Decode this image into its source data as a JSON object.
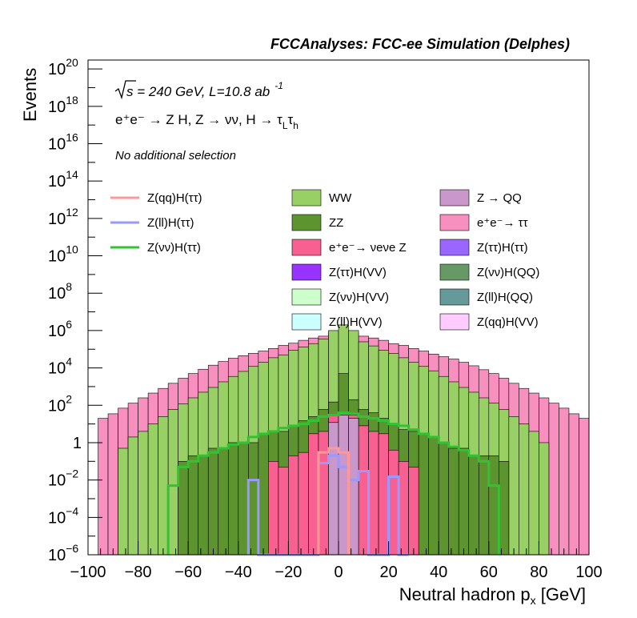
{
  "header": "FCCAnalyses: FCC-ee Simulation (Delphes)",
  "ylabel": "Events",
  "xlabel_main": "Neutral hadron p",
  "xlabel_sub": "x",
  "xlabel_unit": " [GeV]",
  "energy_sqrt": "s",
  "energy_text": " = 240 GeV, L=10.8 ab",
  "energy_sup": "-1",
  "process_text": "e⁺e⁻ → Z H, Z → νν, H → τ",
  "process_sub1": "L",
  "process_tau2": "τ",
  "process_sub2": "h",
  "selection": "No additional selection",
  "chart_data": {
    "type": "area",
    "x_range": [
      -100,
      100
    ],
    "y_range": [
      1e-06,
      3e+20
    ],
    "y_scale": "log",
    "x_ticks": [
      -100,
      -80,
      -60,
      -40,
      -20,
      0,
      20,
      40,
      60,
      80,
      100
    ],
    "y_ticks": [
      {
        "exp": -6,
        "label": "10",
        "sup": "-6"
      },
      {
        "exp": -4,
        "label": "10",
        "sup": "-4"
      },
      {
        "exp": -2,
        "label": "10",
        "sup": "-2"
      },
      {
        "exp": 0,
        "label": "1",
        "sup": ""
      },
      {
        "exp": 2,
        "label": "10",
        "sup": "2"
      },
      {
        "exp": 4,
        "label": "10",
        "sup": "4"
      },
      {
        "exp": 6,
        "label": "10",
        "sup": "6"
      },
      {
        "exp": 8,
        "label": "10",
        "sup": "8"
      },
      {
        "exp": 10,
        "label": "10",
        "sup": "10"
      },
      {
        "exp": 12,
        "label": "10",
        "sup": "12"
      },
      {
        "exp": 14,
        "label": "10",
        "sup": "14"
      },
      {
        "exp": 16,
        "label": "10",
        "sup": "16"
      },
      {
        "exp": 18,
        "label": "10",
        "sup": "18"
      },
      {
        "exp": 20,
        "label": "10",
        "sup": "20"
      }
    ],
    "bin_width": 4,
    "stacked_series": [
      {
        "name": "e⁺e⁻→ ττ",
        "color": "#f78fbf",
        "bins": [
          [
            -96,
            20
          ],
          [
            -92,
            35
          ],
          [
            -88,
            70
          ],
          [
            -84,
            130
          ],
          [
            -80,
            250
          ],
          [
            -76,
            450
          ],
          [
            -72,
            800
          ],
          [
            -68,
            1500
          ],
          [
            -64,
            2800
          ],
          [
            -60,
            5000
          ],
          [
            -56,
            8500
          ],
          [
            -52,
            14000
          ],
          [
            -48,
            22000
          ],
          [
            -44,
            33000
          ],
          [
            -40,
            45000
          ],
          [
            -36,
            60000
          ],
          [
            -32,
            80000
          ],
          [
            -28,
            110000
          ],
          [
            -24,
            160000
          ],
          [
            -20,
            210000
          ],
          [
            -16,
            300000
          ],
          [
            -12,
            400000
          ],
          [
            -8,
            500000
          ],
          [
            -4,
            800000
          ],
          [
            0,
            1000000
          ],
          [
            4,
            700000
          ],
          [
            8,
            500000
          ],
          [
            12,
            400000
          ],
          [
            16,
            300000
          ],
          [
            20,
            200000
          ],
          [
            24,
            160000
          ],
          [
            28,
            110000
          ],
          [
            32,
            80000
          ],
          [
            36,
            55000
          ],
          [
            40,
            40000
          ],
          [
            44,
            30000
          ],
          [
            48,
            20000
          ],
          [
            52,
            13000
          ],
          [
            56,
            8000
          ],
          [
            60,
            5000
          ],
          [
            64,
            2800
          ],
          [
            68,
            1500
          ],
          [
            72,
            800
          ],
          [
            76,
            450
          ],
          [
            80,
            250
          ],
          [
            84,
            130
          ],
          [
            88,
            70
          ],
          [
            92,
            35
          ],
          [
            96,
            20
          ]
        ]
      },
      {
        "name": "WW",
        "color": "#99d066",
        "bins": [
          [
            -88,
            0.5
          ],
          [
            -84,
            2
          ],
          [
            -80,
            4
          ],
          [
            -76,
            10
          ],
          [
            -72,
            25
          ],
          [
            -68,
            60
          ],
          [
            -64,
            120
          ],
          [
            -60,
            250
          ],
          [
            -56,
            500
          ],
          [
            -52,
            900
          ],
          [
            -48,
            1800
          ],
          [
            -44,
            3500
          ],
          [
            -40,
            6500
          ],
          [
            -36,
            12000
          ],
          [
            -32,
            20000
          ],
          [
            -28,
            35000
          ],
          [
            -24,
            50000
          ],
          [
            -20,
            90000
          ],
          [
            -16,
            130000
          ],
          [
            -12,
            200000
          ],
          [
            -8,
            350000
          ],
          [
            -4,
            1000000
          ],
          [
            0,
            2000000
          ],
          [
            4,
            1000000
          ],
          [
            8,
            250000
          ],
          [
            12,
            150000
          ],
          [
            16,
            90000
          ],
          [
            20,
            60000
          ],
          [
            24,
            35000
          ],
          [
            28,
            20000
          ],
          [
            32,
            12000
          ],
          [
            36,
            7000
          ],
          [
            40,
            3500
          ],
          [
            44,
            1800
          ],
          [
            48,
            900
          ],
          [
            52,
            500
          ],
          [
            56,
            250
          ],
          [
            60,
            130
          ],
          [
            64,
            60
          ],
          [
            68,
            25
          ],
          [
            72,
            10
          ],
          [
            76,
            4
          ],
          [
            80,
            1
          ]
        ]
      },
      {
        "name": "ZZ",
        "color": "#5d9430",
        "bins": [
          [
            -64,
            0.1
          ],
          [
            -60,
            0.2
          ],
          [
            -56,
            0.2
          ],
          [
            -52,
            0.5
          ],
          [
            -48,
            0.5
          ],
          [
            -44,
            1
          ],
          [
            -40,
            1
          ],
          [
            -36,
            1
          ],
          [
            -32,
            3
          ],
          [
            -28,
            4
          ],
          [
            -24,
            4
          ],
          [
            -20,
            8
          ],
          [
            -16,
            15
          ],
          [
            -12,
            25
          ],
          [
            -8,
            60
          ],
          [
            -4,
            150
          ],
          [
            0,
            5000
          ],
          [
            4,
            200
          ],
          [
            8,
            60
          ],
          [
            12,
            40
          ],
          [
            16,
            20
          ],
          [
            20,
            10
          ],
          [
            24,
            5
          ],
          [
            28,
            4
          ],
          [
            32,
            3
          ],
          [
            36,
            2
          ],
          [
            40,
            1
          ],
          [
            44,
            0.5
          ],
          [
            48,
            0.5
          ],
          [
            52,
            0.2
          ],
          [
            56,
            0.2
          ],
          [
            60,
            0.2
          ],
          [
            64,
            0.1
          ]
        ]
      },
      {
        "name": "e⁺e⁻→ νeνe Z",
        "color": "#f76090",
        "bins": [
          [
            -28,
            0.1
          ],
          [
            -24,
            0.05
          ],
          [
            -20,
            0.2
          ],
          [
            -16,
            0.3
          ],
          [
            -12,
            3
          ],
          [
            -8,
            4
          ],
          [
            -4,
            30
          ],
          [
            0,
            40
          ],
          [
            4,
            30
          ],
          [
            8,
            8
          ],
          [
            12,
            4
          ],
          [
            16,
            3
          ],
          [
            20,
            0.4
          ],
          [
            24,
            0.1
          ],
          [
            28,
            0.05
          ]
        ]
      },
      {
        "name": "Z → QQ",
        "color": "#c997c9",
        "bins": [
          [
            -4,
            12
          ],
          [
            0,
            30
          ],
          [
            4,
            20
          ]
        ]
      }
    ],
    "lines": [
      {
        "name": "Z(νν)H(ττ)",
        "color": "#33c233",
        "bins": [
          [
            -68,
            0.005
          ],
          [
            -64,
            0.05
          ],
          [
            -60,
            0.1
          ],
          [
            -56,
            0.2
          ],
          [
            -52,
            0.3
          ],
          [
            -48,
            0.5
          ],
          [
            -44,
            0.8
          ],
          [
            -40,
            1
          ],
          [
            -36,
            2
          ],
          [
            -32,
            3
          ],
          [
            -28,
            4
          ],
          [
            -24,
            6
          ],
          [
            -20,
            8
          ],
          [
            -16,
            10
          ],
          [
            -12,
            15
          ],
          [
            -8,
            25
          ],
          [
            -4,
            30
          ],
          [
            0,
            40
          ],
          [
            4,
            35
          ],
          [
            8,
            25
          ],
          [
            12,
            20
          ],
          [
            16,
            15
          ],
          [
            20,
            10
          ],
          [
            24,
            8
          ],
          [
            28,
            5
          ],
          [
            32,
            3
          ],
          [
            36,
            2
          ],
          [
            40,
            1
          ],
          [
            44,
            0.6
          ],
          [
            48,
            0.4
          ],
          [
            52,
            0.2
          ],
          [
            56,
            0.1
          ],
          [
            60,
            0.005
          ]
        ]
      },
      {
        "name": "Z(ll)H(ττ)",
        "color": "#9999ff",
        "bins": [
          [
            -36,
            0.01
          ],
          [
            -32,
            1e-06
          ],
          [
            -28,
            1e-06
          ],
          [
            -24,
            1e-06
          ],
          [
            -20,
            1e-06
          ],
          [
            -16,
            1e-06
          ],
          [
            -12,
            1e-06
          ],
          [
            -8,
            0.08
          ],
          [
            -4,
            0.2
          ],
          [
            0,
            0.05
          ],
          [
            4,
            0.01
          ],
          [
            8,
            0.03
          ],
          [
            12,
            1e-06
          ],
          [
            16,
            1e-06
          ],
          [
            20,
            0.015
          ],
          [
            24,
            1e-06
          ]
        ]
      },
      {
        "name": "Z(qq)H(ττ)",
        "color": "#ff9999",
        "bins": [
          [
            -8,
            0.3
          ],
          [
            -4,
            0.5
          ],
          [
            0,
            0.3
          ]
        ]
      }
    ],
    "legend": [
      {
        "label": "Z(qq)H(ττ)",
        "style": "line",
        "color": "#ff9999"
      },
      {
        "label": "Z(ll)H(ττ)",
        "style": "line",
        "color": "#9999ff"
      },
      {
        "label": "Z(νν)H(ττ)",
        "style": "line",
        "color": "#33c233"
      },
      {
        "label": "WW",
        "style": "box",
        "color": "#99d066"
      },
      {
        "label": "ZZ",
        "style": "box",
        "color": "#5d9430"
      },
      {
        "label": "e⁺e⁻→ νeνe Z",
        "style": "box",
        "color": "#f76090"
      },
      {
        "label": "Z(ττ)H(VV)",
        "style": "box",
        "color": "#9933ff"
      },
      {
        "label": "Z(νν)H(VV)",
        "style": "box",
        "color": "#ccffcc"
      },
      {
        "label": "Z(ll)H(VV)",
        "style": "box",
        "color": "#ccffff"
      },
      {
        "label": "Z → QQ",
        "style": "box",
        "color": "#c997c9"
      },
      {
        "label": "e⁺e⁻→ ττ",
        "style": "box",
        "color": "#f78fbf"
      },
      {
        "label": "Z(ττ)H(ττ)",
        "style": "box",
        "color": "#9966ff"
      },
      {
        "label": "Z(νν)H(QQ)",
        "style": "box",
        "color": "#669966"
      },
      {
        "label": "Z(ll)H(QQ)",
        "style": "box",
        "color": "#669999"
      },
      {
        "label": "Z(qq)H(VV)",
        "style": "box",
        "color": "#ffccff"
      }
    ]
  }
}
